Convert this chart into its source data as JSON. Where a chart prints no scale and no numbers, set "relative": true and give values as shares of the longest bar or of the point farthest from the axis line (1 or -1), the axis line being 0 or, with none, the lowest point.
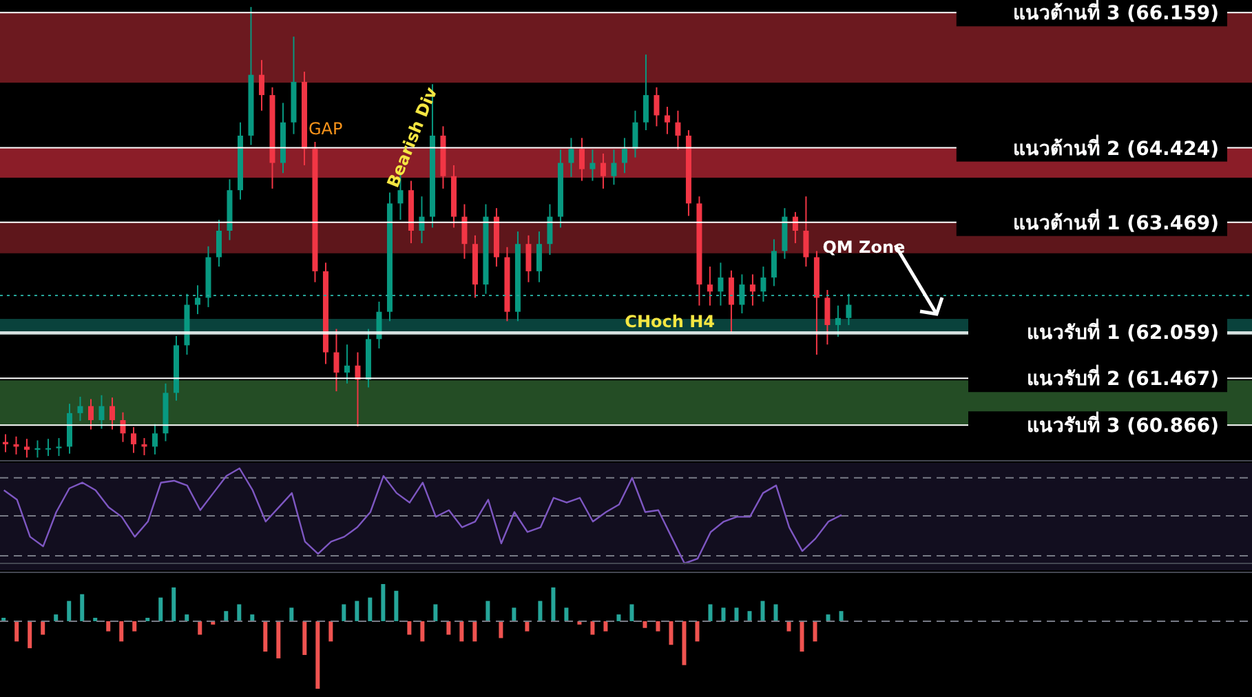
{
  "chart_data": [
    {
      "type": "candlestick",
      "tick_labels": false,
      "categories": [
        null,
        null,
        null,
        null,
        null,
        null,
        null,
        null,
        null,
        null,
        null,
        null,
        null,
        null,
        null,
        null,
        null,
        null,
        null,
        null,
        null,
        null,
        null,
        null,
        null,
        null,
        null,
        null,
        null,
        null,
        null,
        null,
        null,
        null,
        null,
        null,
        null,
        null,
        null,
        null,
        null,
        null,
        null,
        null,
        null,
        null,
        null,
        null,
        null,
        null,
        null,
        null,
        null,
        null,
        null,
        null,
        null,
        null,
        null,
        null,
        null,
        null,
        null,
        null,
        null,
        null,
        null,
        null,
        null,
        null,
        null,
        null,
        null,
        null,
        null,
        null,
        null,
        null,
        null,
        null
      ],
      "ohlc": [
        [
          60.65,
          60.75,
          60.52,
          60.62
        ],
        [
          60.62,
          60.72,
          60.49,
          60.59
        ],
        [
          60.59,
          60.69,
          60.45,
          60.55
        ],
        [
          60.55,
          60.67,
          60.45,
          60.57
        ],
        [
          60.57,
          60.69,
          60.47,
          60.57
        ],
        [
          60.57,
          60.7,
          60.47,
          60.59
        ],
        [
          60.59,
          61.14,
          60.5,
          61.02
        ],
        [
          61.02,
          61.23,
          60.92,
          61.11
        ],
        [
          61.11,
          61.2,
          60.81,
          60.93
        ],
        [
          60.93,
          61.25,
          60.82,
          61.11
        ],
        [
          61.11,
          61.22,
          60.81,
          60.93
        ],
        [
          60.93,
          61.03,
          60.65,
          60.76
        ],
        [
          60.76,
          60.84,
          60.51,
          60.62
        ],
        [
          60.62,
          60.7,
          60.48,
          60.59
        ],
        [
          60.59,
          60.88,
          60.49,
          60.76
        ],
        [
          60.76,
          61.4,
          60.66,
          61.28
        ],
        [
          61.28,
          62.01,
          61.18,
          61.89
        ],
        [
          61.89,
          62.55,
          61.77,
          62.41
        ],
        [
          62.41,
          62.66,
          62.29,
          62.5
        ],
        [
          62.5,
          63.16,
          62.38,
          63.02
        ],
        [
          63.02,
          63.5,
          62.9,
          63.36
        ],
        [
          63.36,
          64.02,
          63.24,
          63.88
        ],
        [
          63.88,
          64.75,
          63.76,
          64.58
        ],
        [
          64.58,
          66.23,
          64.46,
          65.36
        ],
        [
          65.36,
          65.55,
          64.9,
          65.1
        ],
        [
          65.1,
          65.2,
          63.9,
          64.23
        ],
        [
          64.23,
          65.0,
          64.1,
          64.75
        ],
        [
          64.75,
          65.85,
          64.6,
          65.27
        ],
        [
          65.27,
          65.4,
          64.2,
          64.41
        ],
        [
          64.41,
          64.5,
          62.7,
          62.84
        ],
        [
          62.84,
          62.95,
          61.65,
          61.8
        ],
        [
          61.8,
          62.1,
          61.3,
          61.54
        ],
        [
          61.54,
          61.9,
          61.4,
          61.63
        ],
        [
          61.63,
          61.8,
          60.85,
          61.45
        ],
        [
          61.45,
          62.1,
          61.35,
          61.97
        ],
        [
          61.97,
          62.45,
          61.85,
          62.32
        ],
        [
          62.32,
          63.85,
          62.2,
          63.71
        ],
        [
          63.71,
          64.1,
          63.5,
          63.88
        ],
        [
          63.88,
          64.0,
          63.2,
          63.36
        ],
        [
          63.36,
          63.8,
          63.2,
          63.54
        ],
        [
          63.54,
          65.24,
          63.4,
          64.58
        ],
        [
          64.58,
          64.7,
          63.9,
          64.06
        ],
        [
          64.06,
          64.2,
          63.4,
          63.54
        ],
        [
          63.54,
          63.7,
          63.0,
          63.19
        ],
        [
          63.19,
          63.3,
          62.5,
          62.67
        ],
        [
          62.67,
          63.7,
          62.55,
          63.54
        ],
        [
          63.54,
          63.65,
          62.9,
          63.02
        ],
        [
          63.02,
          63.15,
          62.2,
          62.32
        ],
        [
          62.32,
          63.35,
          62.2,
          63.19
        ],
        [
          63.19,
          63.3,
          62.7,
          62.84
        ],
        [
          62.84,
          63.35,
          62.7,
          63.19
        ],
        [
          63.19,
          63.7,
          63.05,
          63.54
        ],
        [
          63.54,
          64.4,
          63.4,
          64.23
        ],
        [
          64.23,
          64.55,
          64.05,
          64.41
        ],
        [
          64.41,
          64.55,
          64.0,
          64.15
        ],
        [
          64.15,
          64.4,
          64.0,
          64.23
        ],
        [
          64.23,
          64.35,
          63.9,
          64.06
        ],
        [
          64.06,
          64.4,
          63.95,
          64.23
        ],
        [
          64.23,
          64.55,
          64.1,
          64.41
        ],
        [
          64.41,
          64.9,
          64.3,
          64.75
        ],
        [
          64.75,
          65.62,
          64.65,
          65.1
        ],
        [
          65.1,
          65.2,
          64.7,
          64.84
        ],
        [
          64.84,
          64.95,
          64.6,
          64.75
        ],
        [
          64.75,
          64.9,
          64.4,
          64.58
        ],
        [
          64.58,
          64.65,
          63.55,
          63.71
        ],
        [
          63.71,
          63.8,
          62.4,
          62.67
        ],
        [
          62.67,
          62.9,
          62.4,
          62.58
        ],
        [
          62.58,
          62.95,
          62.4,
          62.76
        ],
        [
          62.76,
          62.85,
          62.05,
          62.41
        ],
        [
          62.41,
          62.8,
          62.3,
          62.67
        ],
        [
          62.67,
          62.8,
          62.4,
          62.58
        ],
        [
          62.58,
          62.9,
          62.45,
          62.76
        ],
        [
          62.76,
          63.25,
          62.65,
          63.1
        ],
        [
          63.1,
          63.65,
          63.0,
          63.54
        ],
        [
          63.54,
          63.6,
          63.2,
          63.36
        ],
        [
          63.36,
          63.8,
          62.9,
          63.02
        ],
        [
          63.02,
          63.1,
          61.77,
          62.5
        ],
        [
          62.5,
          62.6,
          61.9,
          62.15
        ],
        [
          62.15,
          62.4,
          62.0,
          62.24
        ],
        [
          62.24,
          62.55,
          62.15,
          62.41
        ]
      ],
      "ylim": [
        60.4,
        66.32
      ],
      "bands": [
        {
          "axis": "y",
          "from": 65.26,
          "to": 66.159,
          "color": "#7f1d24"
        },
        {
          "axis": "y",
          "from": 64.04,
          "to": 64.424,
          "color": "#a3222f"
        },
        {
          "axis": "y",
          "from": 63.07,
          "to": 63.469,
          "color": "#6e1a20"
        },
        {
          "axis": "y",
          "from": 62.03,
          "to": 62.23,
          "color": "#0b4d47"
        },
        {
          "axis": "y",
          "from": 60.866,
          "to": 61.44,
          "color": "#2a5a2c"
        }
      ],
      "ref_lines": [
        {
          "axis": "y",
          "value": 66.159,
          "label": "แนวต้านที่ 3 (66.159)",
          "color": "#ffffff"
        },
        {
          "axis": "y",
          "value": 64.424,
          "label": "แนวต้านที่ 2 (64.424)",
          "color": "#ffffff"
        },
        {
          "axis": "y",
          "value": 63.469,
          "label": "แนวต้านที่ 1 (63.469)",
          "color": "#ffffff"
        },
        {
          "axis": "y",
          "value": 62.059,
          "label": "แนวรับที่ 1 (62.059)",
          "color": "#ffffff"
        },
        {
          "axis": "y",
          "value": 61.467,
          "label": "แนวรับที่ 2 (61.467)",
          "color": "#ffffff"
        },
        {
          "axis": "y",
          "value": 60.866,
          "label": "แนวรับที่ 3 (60.866)",
          "color": "#ffffff"
        },
        {
          "axis": "y",
          "value": 62.04,
          "color": "#ffffff"
        },
        {
          "axis": "y",
          "value": 62.53,
          "color": "#26a69a",
          "line_style": "dotted"
        }
      ],
      "annotations": [
        "GAP",
        "Bearish Div",
        "QM Zone",
        {
          "text": "CHoch H4",
          "y": 62.04
        }
      ]
    },
    {
      "type": "line",
      "relative": true,
      "color": "#7e57c2",
      "tick_labels": false,
      "categories": [
        null,
        null,
        null,
        null,
        null,
        null,
        null,
        null,
        null,
        null,
        null,
        null,
        null,
        null,
        null,
        null,
        null,
        null,
        null,
        null,
        null,
        null,
        null,
        null,
        null,
        null,
        null,
        null,
        null,
        null,
        null,
        null,
        null,
        null,
        null,
        null,
        null,
        null,
        null,
        null,
        null,
        null,
        null,
        null,
        null,
        null,
        null,
        null,
        null,
        null,
        null,
        null,
        null,
        null,
        null,
        null,
        null,
        null,
        null,
        null,
        null,
        null,
        null,
        null,
        null
      ],
      "values": [
        0.77,
        0.67,
        0.28,
        0.18,
        0.54,
        0.79,
        0.85,
        0.77,
        0.59,
        0.49,
        0.28,
        0.44,
        0.85,
        0.87,
        0.82,
        0.56,
        0.74,
        0.92,
        1,
        0.77,
        0.44,
        0.59,
        0.74,
        0.23,
        0.1,
        0.23,
        0.28,
        0.38,
        0.54,
        0.92,
        0.74,
        0.64,
        0.85,
        0.49,
        0.56,
        0.38,
        0.44,
        0.67,
        0.21,
        0.54,
        0.33,
        0.38,
        0.69,
        0.64,
        0.69,
        0.44,
        0.54,
        0.62,
        0.9,
        0.54,
        0.56,
        0.28,
        0,
        0.05,
        0.33,
        0.44,
        0.49,
        0.49,
        0.74,
        0.82,
        0.38,
        0.13,
        0.26,
        0.44,
        0.51
      ],
      "ref_lines": [
        {
          "axis": "y",
          "value": 0.9,
          "color": "#787b86",
          "line_style": "dashed"
        },
        {
          "axis": "y",
          "value": 0.5,
          "color": "#787b86",
          "line_style": "dashed"
        },
        {
          "axis": "y",
          "value": 0.08,
          "color": "#787b86",
          "line_style": "dashed"
        }
      ]
    },
    {
      "type": "bar",
      "relative": true,
      "tick_labels": false,
      "categories": [
        null,
        null,
        null,
        null,
        null,
        null,
        null,
        null,
        null,
        null,
        null,
        null,
        null,
        null,
        null,
        null,
        null,
        null,
        null,
        null,
        null,
        null,
        null,
        null,
        null,
        null,
        null,
        null,
        null,
        null,
        null,
        null,
        null,
        null,
        null,
        null,
        null,
        null,
        null,
        null,
        null,
        null,
        null,
        null,
        null,
        null,
        null,
        null,
        null,
        null,
        null,
        null,
        null,
        null,
        null,
        null,
        null,
        null,
        null,
        null,
        null,
        null,
        null,
        null,
        null
      ],
      "values": [
        0.05,
        -0.3,
        -0.4,
        -0.2,
        0.1,
        0.3,
        0.4,
        0.05,
        -0.15,
        -0.3,
        -0.15,
        0.05,
        0.35,
        0.5,
        0.1,
        -0.2,
        -0.05,
        0.15,
        0.25,
        0.1,
        -0.45,
        -0.55,
        0.2,
        -0.5,
        -1,
        -0.3,
        0.25,
        0.3,
        0.35,
        0.55,
        0.45,
        -0.2,
        -0.3,
        0.25,
        -0.2,
        -0.3,
        -0.3,
        0.3,
        -0.25,
        0.2,
        -0.15,
        0.3,
        0.5,
        0.2,
        -0.05,
        -0.2,
        -0.15,
        0.1,
        0.25,
        -0.1,
        -0.15,
        -0.35,
        -0.65,
        -0.3,
        0.25,
        0.2,
        0.2,
        0.15,
        0.3,
        0.25,
        -0.15,
        -0.45,
        -0.3,
        0.1,
        0.15
      ],
      "colors": [
        "#26a69a",
        "#ef5350",
        "#ef5350",
        "#ef5350",
        "#26a69a",
        "#26a69a",
        "#26a69a",
        "#26a69a",
        "#ef5350",
        "#ef5350",
        "#ef5350",
        "#26a69a",
        "#26a69a",
        "#26a69a",
        "#26a69a",
        "#ef5350",
        "#ef5350",
        "#26a69a",
        "#26a69a",
        "#26a69a",
        "#ef5350",
        "#ef5350",
        "#26a69a",
        "#ef5350",
        "#ef5350",
        "#ef5350",
        "#26a69a",
        "#26a69a",
        "#26a69a",
        "#26a69a",
        "#26a69a",
        "#ef5350",
        "#ef5350",
        "#26a69a",
        "#ef5350",
        "#ef5350",
        "#ef5350",
        "#26a69a",
        "#ef5350",
        "#26a69a",
        "#ef5350",
        "#26a69a",
        "#26a69a",
        "#26a69a",
        "#ef5350",
        "#ef5350",
        "#ef5350",
        "#26a69a",
        "#26a69a",
        "#ef5350",
        "#ef5350",
        "#ef5350",
        "#ef5350",
        "#ef5350",
        "#26a69a",
        "#26a69a",
        "#26a69a",
        "#26a69a",
        "#26a69a",
        "#26a69a",
        "#ef5350",
        "#ef5350",
        "#ef5350",
        "#26a69a",
        "#26a69a"
      ],
      "ref_lines": [
        {
          "axis": "y",
          "value": 0,
          "color": "#787b86",
          "line_style": "dashed"
        }
      ]
    }
  ]
}
